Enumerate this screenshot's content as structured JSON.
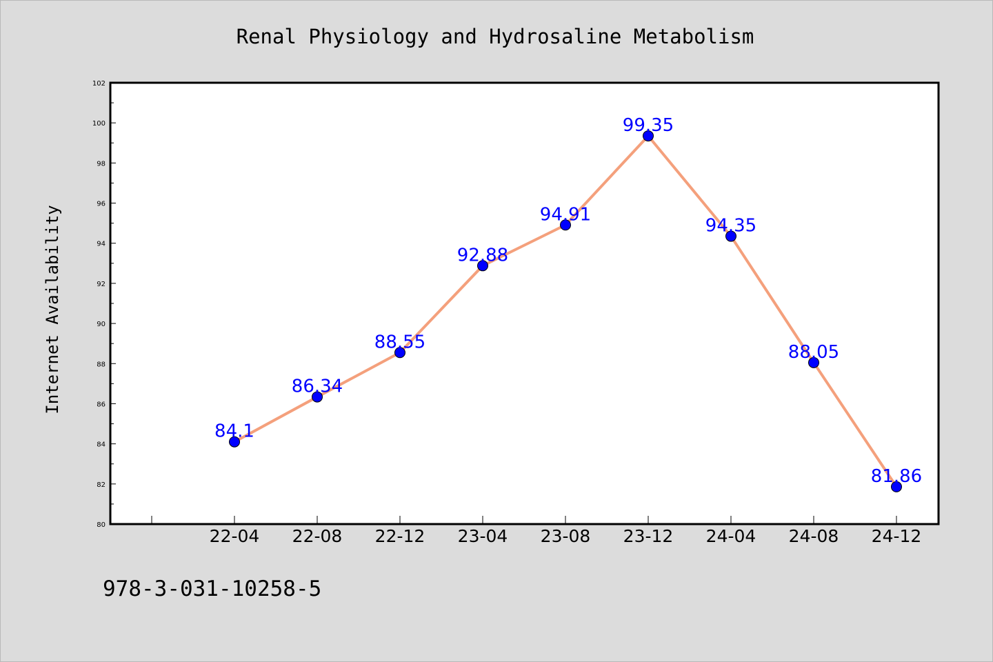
{
  "chart_data": {
    "type": "line",
    "title": "Renal Physiology and Hydrosaline Metabolism",
    "xlabel": "",
    "ylabel": "Internet Availability",
    "categories": [
      "22-04",
      "22-08",
      "22-12",
      "23-04",
      "23-08",
      "23-12",
      "24-04",
      "24-08",
      "24-12"
    ],
    "series": [
      {
        "values": [
          84.1,
          86.34,
          88.55,
          92.88,
          94.91,
          99.35,
          94.35,
          88.05,
          81.86
        ],
        "labels": [
          "84.1",
          "86.34",
          "88.55",
          "92.88",
          "94.91",
          "99.35",
          "94.35",
          "88.05",
          "81.86"
        ],
        "line_color": "#f4a07c",
        "marker_color": "#0000ff",
        "label_color": "#0000ff"
      }
    ],
    "ylim": [
      80,
      102
    ],
    "yticks": [
      "80",
      "82",
      "84",
      "86",
      "88",
      "90",
      "92",
      "94",
      "96",
      "98",
      "100",
      "102"
    ],
    "grid": false,
    "legend": "none"
  },
  "footer": {
    "isbn": "978-3-031-10258-5"
  },
  "colors": {
    "background": "#dcdcdc",
    "plot_background": "#ffffff"
  }
}
